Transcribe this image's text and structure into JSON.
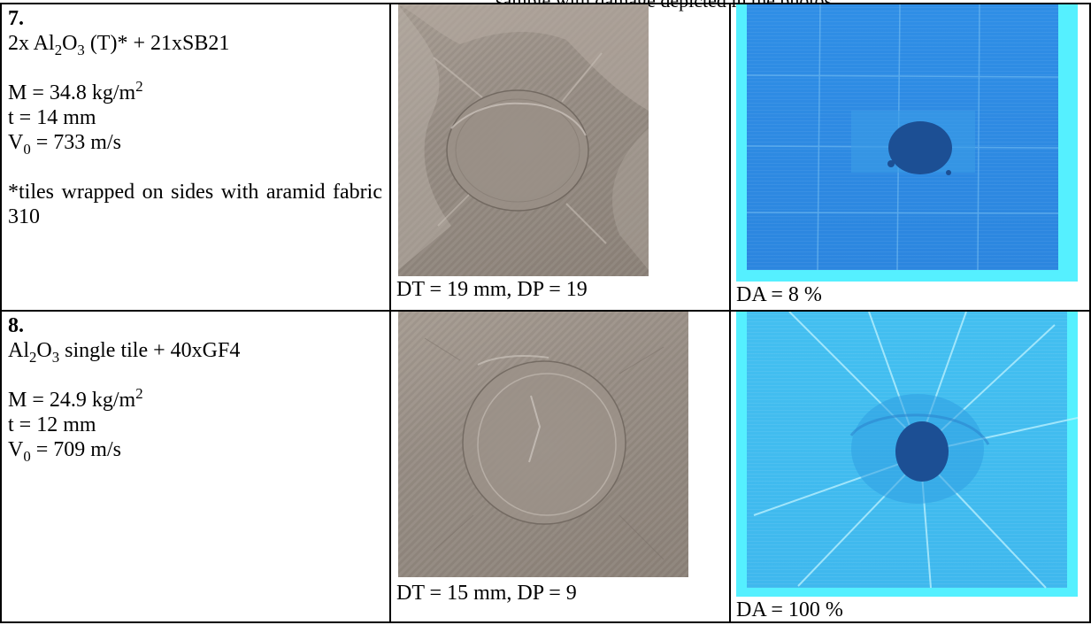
{
  "top_fragment": "sample with damage depicted in the photos",
  "rows": [
    {
      "number": "7.",
      "config": {
        "pre": "2x Al",
        "s1": "2",
        "mid": "O",
        "s2": "3",
        "post": " (T)* + 21xSB21"
      },
      "mass": {
        "pre": "M = 34.8 kg/m",
        "sup": "2"
      },
      "thickness": "t = 14 mm",
      "velocity": {
        "pre": "V",
        "sub": "0",
        "post": " = 733 m/s"
      },
      "note": "*tiles wrapped on sides with aramid fabric 310",
      "photo_caption": "DT = 19 mm, DP = 19",
      "scan_caption": "DA = 8 %"
    },
    {
      "number": "8.",
      "config": {
        "pre": "Al",
        "s1": "2",
        "mid": "O",
        "s2": "3",
        "post": " single tile + 40xGF4"
      },
      "mass": {
        "pre": "M = 24.9 kg/m",
        "sup": "2"
      },
      "thickness": "t = 12 mm",
      "velocity": {
        "pre": "V",
        "sub": "0",
        "post": " = 709 m/s"
      },
      "note": "",
      "photo_caption": "DT = 15 mm, DP = 9",
      "scan_caption": "DA = 100 %"
    }
  ],
  "colors": {
    "photo_grey": "#978d84",
    "scan_dark_blue": "#2c86df",
    "scan_light_blue": "#3fb8ee",
    "scan_cyan_border": "#55f0ff",
    "damage_blue": "#1c4f94"
  }
}
